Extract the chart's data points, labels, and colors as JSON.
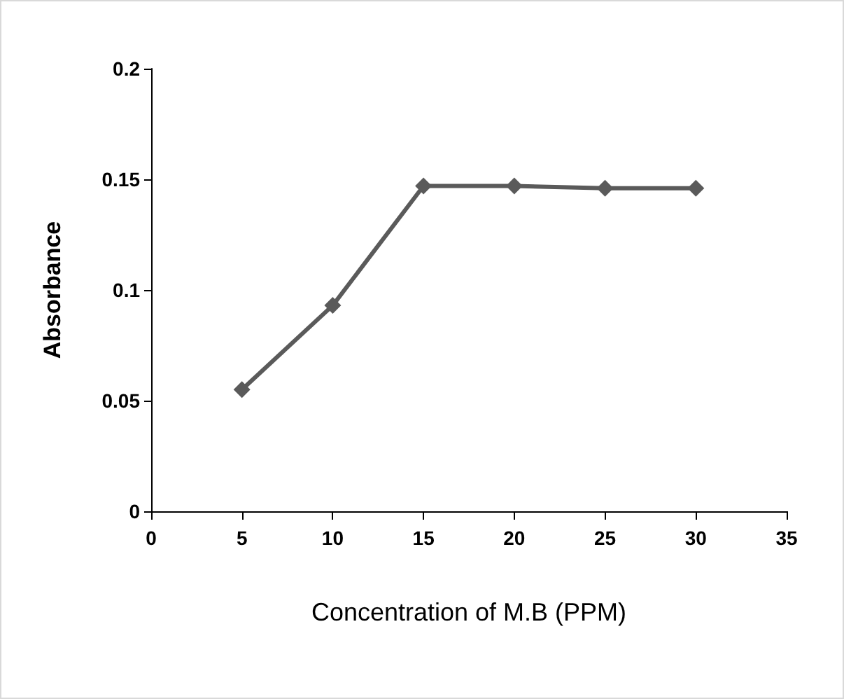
{
  "chart_data": {
    "type": "line",
    "xlabel": "Concentration of M.B (PPM)",
    "ylabel": "Absorbance",
    "x": [
      5,
      10,
      15,
      20,
      25,
      30
    ],
    "series": [
      {
        "color": "#5a5a5a",
        "values": [
          0.055,
          0.093,
          0.147,
          0.147,
          0.146,
          0.146
        ]
      }
    ],
    "xlim": [
      0,
      35
    ],
    "xticks": [
      0,
      5,
      10,
      15,
      20,
      25,
      30,
      35
    ],
    "ylim": [
      0,
      0.2
    ],
    "yticks": [
      0,
      0.05,
      0.1,
      0.15,
      0.2
    ],
    "grid": false,
    "marker": "diamond",
    "line_style": "solid"
  }
}
